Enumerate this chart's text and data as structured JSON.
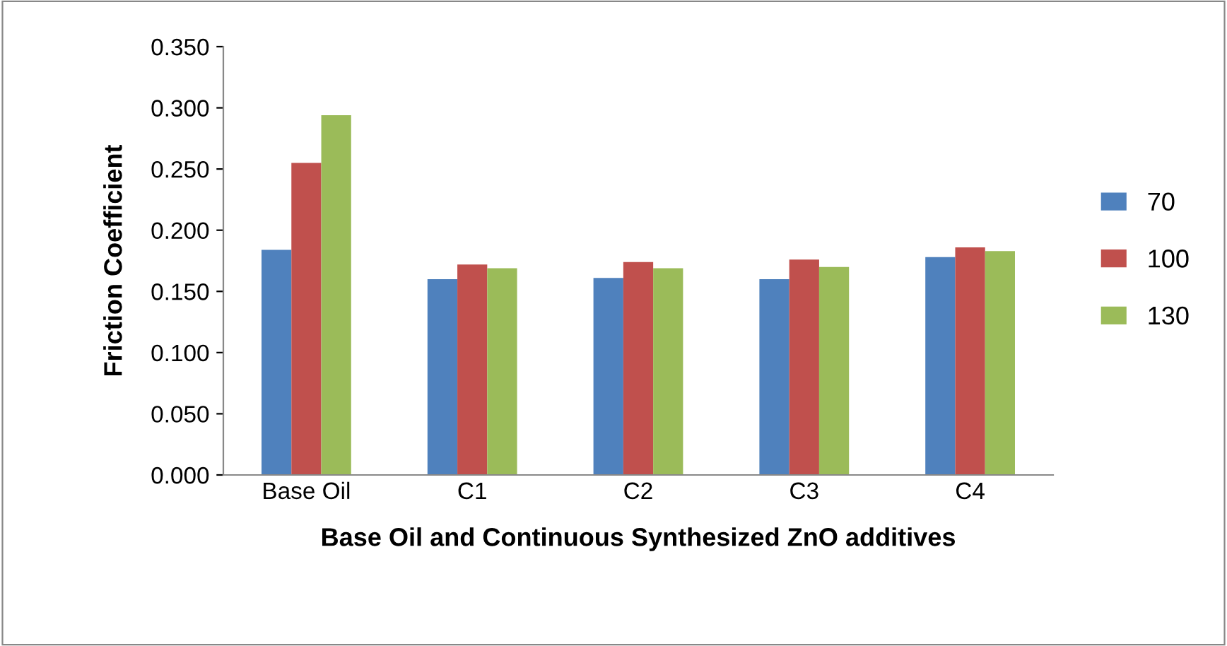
{
  "chart_data": {
    "type": "bar",
    "xlabel": "Base Oil and Continuous Synthesized ZnO additives",
    "ylabel": "Friction Coefficient",
    "categories": [
      "Base Oil",
      "C1",
      "C2",
      "C3",
      "C4"
    ],
    "series": [
      {
        "name": "70",
        "color": "#4f81bd",
        "values": [
          0.184,
          0.16,
          0.161,
          0.16,
          0.178
        ]
      },
      {
        "name": "100",
        "color": "#c0504d",
        "values": [
          0.255,
          0.172,
          0.174,
          0.176,
          0.186
        ]
      },
      {
        "name": "130",
        "color": "#9bbb59",
        "values": [
          0.294,
          0.169,
          0.169,
          0.17,
          0.183
        ]
      }
    ],
    "ylim": [
      0,
      0.35
    ],
    "yticks": [
      {
        "value": 0,
        "label": "0.000"
      },
      {
        "value": 0.05,
        "label": "0.050"
      },
      {
        "value": 0.1,
        "label": "0.100"
      },
      {
        "value": 0.15,
        "label": "0.150"
      },
      {
        "value": 0.2,
        "label": "0.200"
      },
      {
        "value": 0.25,
        "label": "0.250"
      },
      {
        "value": 0.3,
        "label": "0.300"
      },
      {
        "value": 0.35,
        "label": "0.350"
      }
    ],
    "grid": false,
    "legend": "right"
  }
}
